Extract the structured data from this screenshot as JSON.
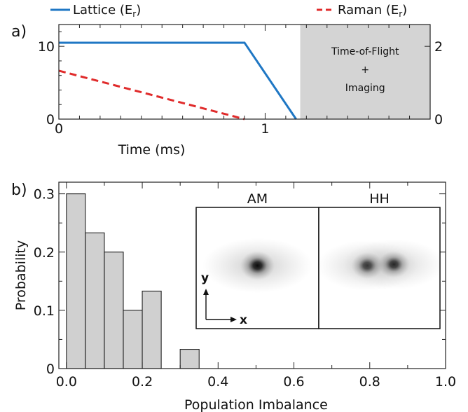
{
  "chart_data": [
    {
      "panel": "a)",
      "type": "line",
      "xlabel": "Time (ms)",
      "xlim": [
        0,
        1.8
      ],
      "x_ticks": [
        "0",
        "1"
      ],
      "y_left_ticks": [
        "0",
        "10"
      ],
      "y_right_ticks": [
        "0",
        "2"
      ],
      "grid": false,
      "legend_placement": "top",
      "series": [
        {
          "name": "Lattice (E",
          "name_sub": "r",
          "name_close": ")",
          "axis": "left",
          "color": "#1f77c4",
          "x": [
            0,
            0.9,
            1.15
          ],
          "y": [
            10.5,
            10.5,
            0
          ]
        },
        {
          "name": "Raman (E",
          "name_sub": "r",
          "name_close": ")",
          "axis": "right",
          "color": "#e02b2b",
          "x": [
            0,
            0.9
          ],
          "y": [
            1.33,
            0
          ]
        }
      ],
      "ylim_left": [
        0,
        13
      ],
      "ylim_right": [
        0,
        2.6
      ],
      "shaded_region": {
        "x_start": 1.17,
        "x_end": 1.8,
        "lines": [
          "Time-of-Flight",
          "+",
          "Imaging"
        ],
        "color": "#d4d4d4"
      }
    },
    {
      "panel": "b)",
      "type": "bar",
      "xlabel": "Population Imbalance",
      "ylabel": "Probability",
      "xlim": [
        -0.02,
        1.0
      ],
      "ylim": [
        0,
        0.32
      ],
      "x_ticks": [
        "0.0",
        "0.2",
        "0.4",
        "0.6",
        "0.8",
        "1.0"
      ],
      "y_ticks": [
        "0",
        "0.1",
        "0.2",
        "0.3"
      ],
      "bar_color": "#d0d0d0",
      "bin_width": 0.05,
      "bins": [
        {
          "x0": 0.0,
          "value": 0.3
        },
        {
          "x0": 0.05,
          "value": 0.233
        },
        {
          "x0": 0.1,
          "value": 0.2
        },
        {
          "x0": 0.15,
          "value": 0.1
        },
        {
          "x0": 0.2,
          "value": 0.133
        },
        {
          "x0": 0.3,
          "value": 0.033
        }
      ],
      "inset": {
        "images": [
          {
            "title": "AM",
            "blobs": [
              {
                "cx": 0.5,
                "cy": 0.48,
                "r": 0.14,
                "strength": 1.0
              }
            ]
          },
          {
            "title": "HH",
            "blobs": [
              {
                "cx": 0.4,
                "cy": 0.48,
                "r": 0.13,
                "strength": 0.85
              },
              {
                "cx": 0.62,
                "cy": 0.47,
                "r": 0.13,
                "strength": 0.85
              }
            ]
          }
        ],
        "axes": {
          "y": "y",
          "x": "x"
        }
      }
    }
  ]
}
